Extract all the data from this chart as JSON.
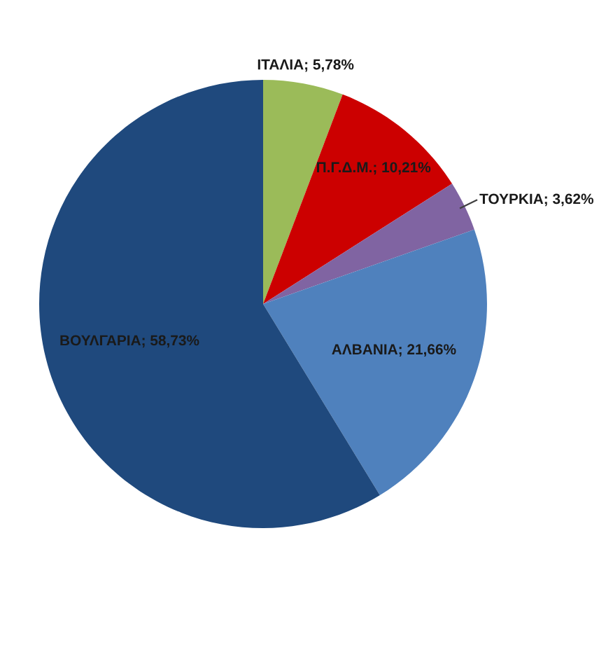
{
  "chart_data": {
    "type": "pie",
    "categories": [
      "ΙΤΑΛΙΑ",
      "Π.Γ.Δ.Μ.",
      "ΤΟΥΡΚΙΑ",
      "ΑΛΒΑΝΙΑ",
      "ΒΟΥΛΓΑΡΙΑ"
    ],
    "values": [
      5.78,
      10.21,
      3.62,
      21.66,
      58.73
    ],
    "colors": [
      "#9bbb59",
      "#cc0000",
      "#8064a2",
      "#4f81bd",
      "#1f497d"
    ],
    "value_labels": [
      "5,78%",
      "10,21%",
      "3,62%",
      "21,66%",
      "58,73%"
    ]
  }
}
